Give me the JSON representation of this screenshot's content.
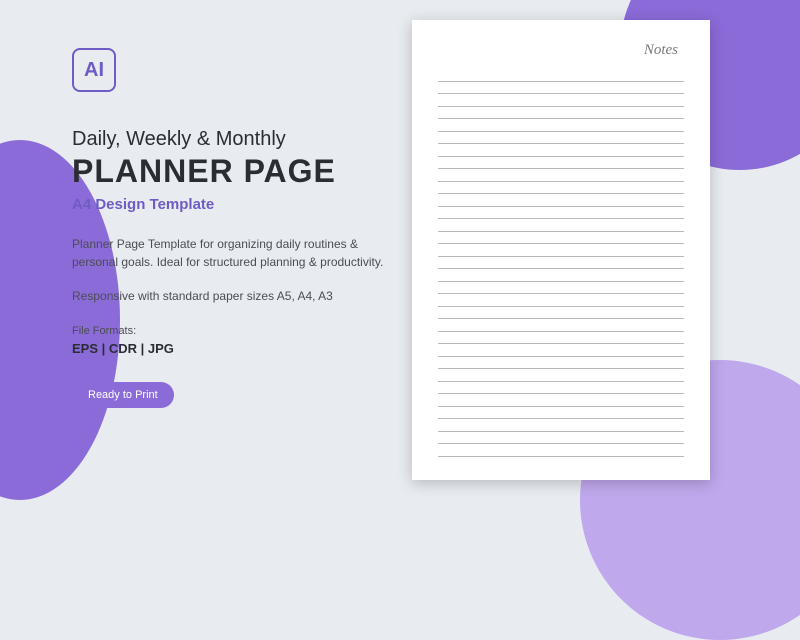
{
  "logo": {
    "text": "AI",
    "border_color": "#6f5bc4",
    "text_color": "#6f5bc4"
  },
  "heading": {
    "line1": "Daily, Weekly & Monthly",
    "line2": "PLANNER PAGE"
  },
  "subtitle": "A4 Design Template",
  "description": "Planner Page Template for organizing daily routines & personal goals. Ideal for structured planning & productivity.",
  "responsive": "Responsive with standard paper sizes A5, A4, A3",
  "formats": {
    "label": "File Formats:",
    "list": "EPS  |  CDR  |  JPG"
  },
  "badge": {
    "text": "Ready to Print",
    "bg": "#8b6bd8",
    "color": "#ffffff"
  },
  "planner": {
    "title": "Notes",
    "line_count": 31,
    "line_color": "#b8b8b8",
    "bg": "#ffffff"
  },
  "shapes": {
    "left_color": "#8b6bd8",
    "right_top_color": "#8b6bd8",
    "right_bottom_color": "#bfa8ec"
  },
  "background": "#e8ecf1"
}
